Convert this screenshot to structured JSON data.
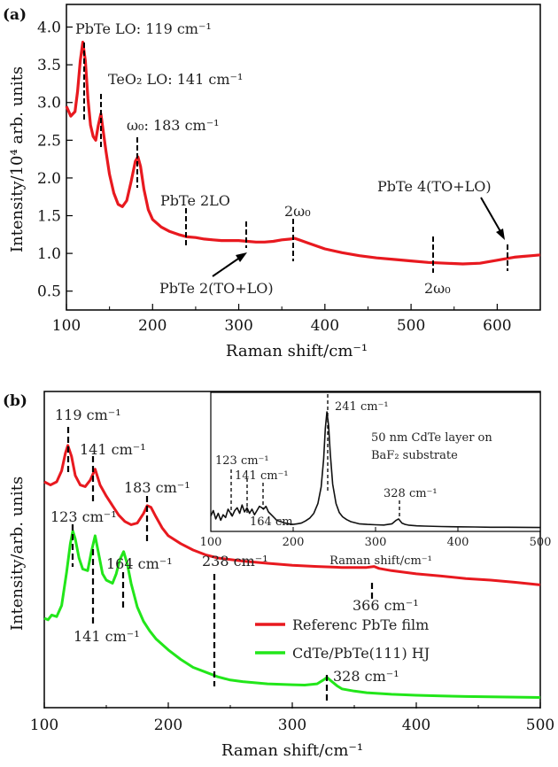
{
  "chart_data": [
    {
      "panel_label": "(a)",
      "type": "line",
      "xlabel": "Raman shift/cm⁻¹",
      "ylabel": "Intensity/10⁴ arb. units",
      "xlim": [
        100,
        650
      ],
      "ylim": [
        0.25,
        4.3
      ],
      "xticks": [
        100,
        200,
        300,
        400,
        500,
        600
      ],
      "yticks": [
        0.5,
        1.0,
        1.5,
        2.0,
        2.5,
        3.0,
        3.5,
        4.0
      ],
      "ytick_labels": [
        "0.5",
        "1.0",
        "1.5",
        "2.0",
        "2.5",
        "3.0",
        "3.5",
        "4.0"
      ],
      "series": [
        {
          "color": "#e8191f",
          "x": [
            100,
            105,
            110,
            113,
            116,
            119,
            122,
            125,
            128,
            131,
            134,
            137,
            140,
            143,
            146,
            150,
            155,
            160,
            165,
            170,
            175,
            180,
            183,
            186,
            190,
            195,
            200,
            210,
            220,
            230,
            240,
            250,
            260,
            270,
            280,
            290,
            300,
            310,
            320,
            330,
            340,
            350,
            360,
            365,
            370,
            380,
            390,
            400,
            420,
            440,
            460,
            480,
            500,
            520,
            540,
            560,
            580,
            600,
            610,
            620,
            630,
            640,
            650
          ],
          "y": [
            2.95,
            2.82,
            2.88,
            3.15,
            3.55,
            3.8,
            3.55,
            3.05,
            2.7,
            2.55,
            2.5,
            2.7,
            2.85,
            2.6,
            2.35,
            2.05,
            1.8,
            1.65,
            1.62,
            1.7,
            1.95,
            2.22,
            2.28,
            2.15,
            1.85,
            1.58,
            1.45,
            1.35,
            1.29,
            1.25,
            1.22,
            1.21,
            1.19,
            1.18,
            1.17,
            1.17,
            1.17,
            1.16,
            1.15,
            1.15,
            1.16,
            1.18,
            1.19,
            1.2,
            1.18,
            1.14,
            1.1,
            1.06,
            1.01,
            0.97,
            0.94,
            0.92,
            0.9,
            0.88,
            0.87,
            0.86,
            0.87,
            0.91,
            0.93,
            0.95,
            0.96,
            0.97,
            0.98
          ]
        }
      ],
      "annotations": [
        {
          "text": "PbTe LO: 119 cm⁻¹",
          "x": 119
        },
        {
          "text": "TeO₂ LO: 141 cm⁻¹",
          "x": 141
        },
        {
          "text": "ω₀: 183 cm⁻¹",
          "x": 183
        },
        {
          "text": "PbTe 2LO",
          "x": 240
        },
        {
          "text": "PbTe 2(TO+LO)",
          "x": 310
        },
        {
          "text": "2ω₀",
          "x": 366
        },
        {
          "text": "2ω₀",
          "x": 529
        },
        {
          "text": "PbTe 4(TO+LO)",
          "x": 615
        }
      ]
    },
    {
      "panel_label": "(b)",
      "type": "line",
      "xlabel": "Raman shift/cm⁻¹",
      "ylabel": "Intensity/arb. units",
      "xlim": [
        100,
        500
      ],
      "ylim": [
        0,
        10
      ],
      "xticks": [
        100,
        200,
        300,
        400,
        500
      ],
      "legend_position": "lower-right",
      "series": [
        {
          "name": "Referenc PbTe film",
          "color": "#e8191f",
          "x": [
            100,
            105,
            110,
            114,
            117,
            119,
            122,
            125,
            129,
            133,
            137,
            141,
            145,
            150,
            155,
            160,
            165,
            170,
            175,
            180,
            183,
            186,
            190,
            195,
            200,
            210,
            220,
            230,
            240,
            260,
            280,
            300,
            320,
            340,
            360,
            366,
            370,
            380,
            400,
            420,
            440,
            460,
            480,
            500
          ],
          "y": [
            7.15,
            7.05,
            7.15,
            7.5,
            8.05,
            8.3,
            7.95,
            7.35,
            7.05,
            7.0,
            7.2,
            7.55,
            7.05,
            6.7,
            6.4,
            6.1,
            5.9,
            5.8,
            5.85,
            6.15,
            6.4,
            6.35,
            6.05,
            5.7,
            5.45,
            5.2,
            5.0,
            4.85,
            4.75,
            4.65,
            4.58,
            4.52,
            4.48,
            4.45,
            4.45,
            4.48,
            4.42,
            4.35,
            4.25,
            4.18,
            4.1,
            4.05,
            3.98,
            3.9
          ]
        },
        {
          "name": "CdTe/PbTe(111) HJ",
          "color": "#22e61a",
          "x": [
            100,
            103,
            106,
            110,
            114,
            118,
            121,
            123,
            125,
            128,
            131,
            135,
            138,
            141,
            144,
            147,
            150,
            155,
            158,
            161,
            164,
            167,
            170,
            175,
            180,
            185,
            190,
            200,
            210,
            220,
            230,
            240,
            250,
            260,
            280,
            300,
            310,
            320,
            325,
            328,
            332,
            336,
            340,
            350,
            360,
            380,
            400,
            420,
            440,
            460,
            480,
            500
          ],
          "y": [
            2.85,
            2.8,
            2.95,
            2.9,
            3.25,
            4.3,
            5.2,
            5.6,
            5.35,
            4.75,
            4.4,
            4.35,
            4.95,
            5.45,
            4.85,
            4.25,
            4.05,
            3.95,
            4.25,
            4.7,
            4.95,
            4.55,
            3.95,
            3.2,
            2.75,
            2.45,
            2.2,
            1.85,
            1.55,
            1.3,
            1.15,
            1.0,
            0.9,
            0.85,
            0.78,
            0.75,
            0.74,
            0.78,
            0.9,
            0.98,
            0.85,
            0.72,
            0.62,
            0.55,
            0.5,
            0.45,
            0.42,
            0.4,
            0.38,
            0.37,
            0.36,
            0.35
          ]
        }
      ],
      "annotations": [
        {
          "text": "119 cm⁻¹",
          "x": 119
        },
        {
          "text": "141 cm⁻¹",
          "x": 141
        },
        {
          "text": "183 cm⁻¹",
          "x": 183
        },
        {
          "text": "123 cm⁻¹",
          "x": 123
        },
        {
          "text": "164 cm⁻¹",
          "x": 164
        },
        {
          "text": "238 cm⁻¹",
          "x": 238
        },
        {
          "text": "366 cm⁻¹",
          "x": 366
        },
        {
          "text": "141 cm⁻¹",
          "x": 141
        },
        {
          "text": "328 cm⁻¹",
          "x": 328
        }
      ],
      "inset": {
        "type": "line",
        "xlabel": "Raman shift/cm⁻¹",
        "xlim": [
          100,
          500
        ],
        "ylim": [
          0,
          10
        ],
        "xticks": [
          100,
          200,
          300,
          400,
          500
        ],
        "text": "50 nm CdTe layer on BaF₂ substrate",
        "text_lines": [
          "50 nm CdTe layer on",
          "BaF₂ substrate"
        ],
        "series": [
          {
            "color": "#111111",
            "x": [
              100,
              103,
              106,
              109,
              112,
              115,
              118,
              121,
              123,
              126,
              129,
              132,
              135,
              138,
              141,
              144,
              147,
              150,
              153,
              156,
              159,
              162,
              164,
              167,
              170,
              175,
              180,
              185,
              190,
              195,
              200,
              205,
              210,
              215,
              220,
              225,
              230,
              234,
              237,
              239,
              241,
              243,
              245,
              248,
              252,
              256,
              260,
              265,
              270,
              280,
              290,
              300,
              310,
              320,
              325,
              328,
              332,
              336,
              340,
              350,
              360,
              380,
              400,
              420,
              440,
              460,
              480,
              500
            ],
            "y": [
              1.1,
              1.5,
              0.9,
              1.3,
              0.8,
              1.2,
              1.0,
              1.6,
              1.4,
              1.1,
              1.5,
              1.7,
              1.3,
              1.9,
              1.4,
              1.7,
              1.3,
              1.6,
              1.2,
              1.5,
              1.8,
              1.7,
              1.6,
              1.8,
              1.4,
              1.1,
              0.8,
              0.7,
              0.6,
              0.55,
              0.5,
              0.55,
              0.6,
              0.75,
              0.95,
              1.3,
              2.0,
              3.2,
              5.2,
              7.4,
              8.6,
              7.6,
              5.6,
              3.4,
              2.0,
              1.35,
              1.05,
              0.85,
              0.7,
              0.55,
              0.5,
              0.48,
              0.46,
              0.55,
              0.8,
              0.9,
              0.6,
              0.5,
              0.45,
              0.4,
              0.38,
              0.35,
              0.33,
              0.32,
              0.3,
              0.3,
              0.29,
              0.28
            ]
          }
        ],
        "annotations": [
          {
            "text": "241 cm⁻¹",
            "x": 241
          },
          {
            "text": "123 cm⁻¹",
            "x": 123
          },
          {
            "text": "141 cm⁻¹",
            "x": 141
          },
          {
            "text": "164 cm",
            "x": 164
          },
          {
            "text": "328 cm⁻¹",
            "x": 328
          }
        ]
      }
    }
  ]
}
